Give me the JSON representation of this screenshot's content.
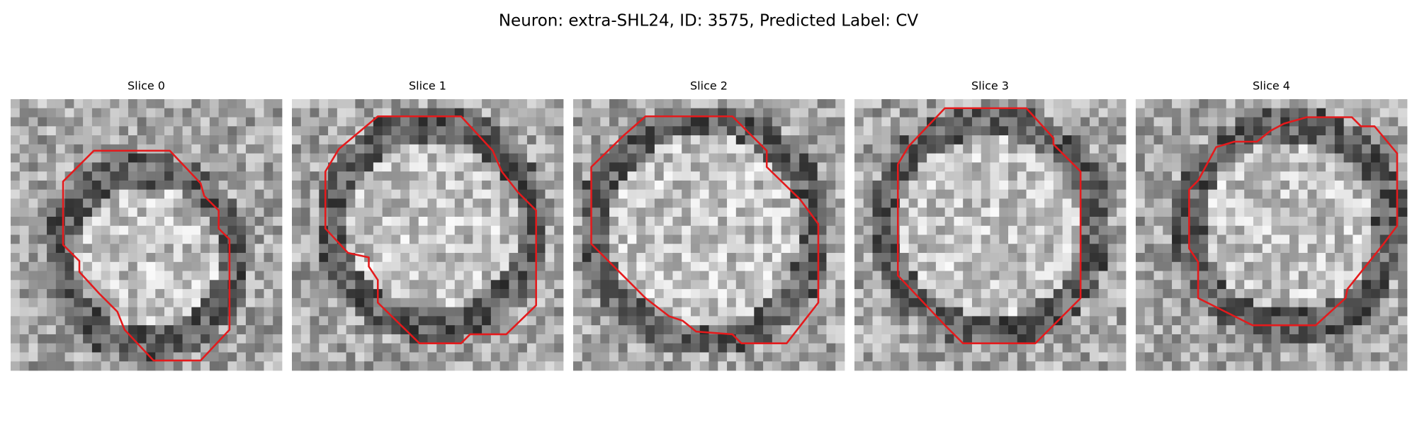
{
  "header": {
    "title": "Neuron: extra-SHL24, ID: 3575, Predicted Label: CV"
  },
  "panels": [
    {
      "title": "Slice 0"
    },
    {
      "title": "Slice 1"
    },
    {
      "title": "Slice 2"
    },
    {
      "title": "Slice 3"
    },
    {
      "title": "Slice 4"
    }
  ]
}
